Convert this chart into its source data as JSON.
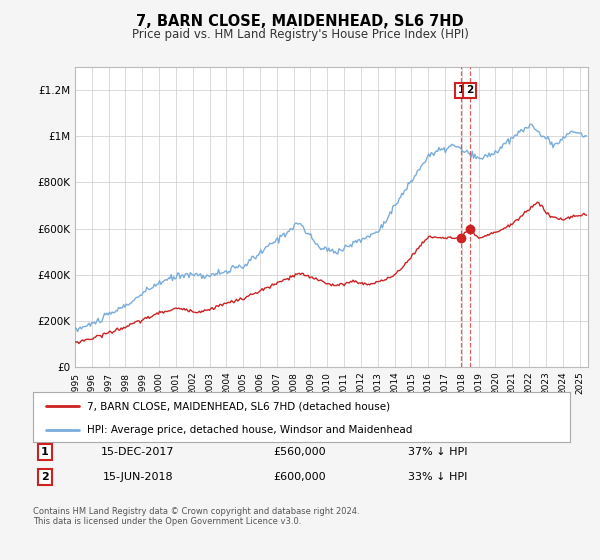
{
  "title": "7, BARN CLOSE, MAIDENHEAD, SL6 7HD",
  "subtitle": "Price paid vs. HM Land Registry's House Price Index (HPI)",
  "hpi_label": "HPI: Average price, detached house, Windsor and Maidenhead",
  "property_label": "7, BARN CLOSE, MAIDENHEAD, SL6 7HD (detached house)",
  "hpi_color": "#7aaddc",
  "property_color": "#cc2222",
  "dashed_line_color": "#dd4444",
  "annotation_box_color": "#cc2222",
  "background_color": "#f5f5f5",
  "plot_bg_color": "#ffffff",
  "grid_color": "#cccccc",
  "xmin": 1995.0,
  "xmax": 2025.5,
  "ymin": 0,
  "ymax": 1300000,
  "transaction1_x": 2017.958,
  "transaction1_y": 560000,
  "transaction2_x": 2018.458,
  "transaction2_y": 600000,
  "note1_date": "15-DEC-2017",
  "note1_price": "£560,000",
  "note1_pct": "37% ↓ HPI",
  "note2_date": "15-JUN-2018",
  "note2_price": "£600,000",
  "note2_pct": "33% ↓ HPI",
  "yticks": [
    0,
    200000,
    400000,
    600000,
    800000,
    1000000,
    1200000
  ],
  "ytick_labels": [
    "£0",
    "£200K",
    "£400K",
    "£600K",
    "£800K",
    "£1M",
    "£1.2M"
  ],
  "footer": "Contains HM Land Registry data © Crown copyright and database right 2024.\nThis data is licensed under the Open Government Licence v3.0."
}
